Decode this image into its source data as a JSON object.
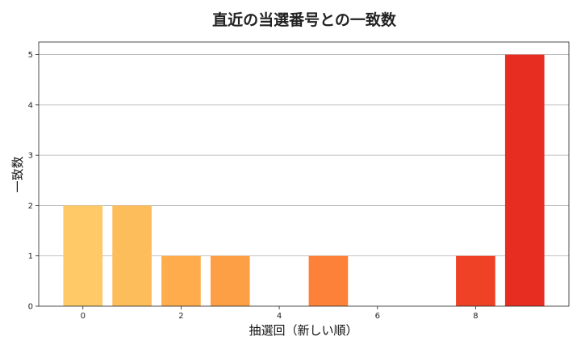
{
  "chart_data": {
    "type": "bar",
    "title": "直近の当選番号との一致数",
    "xlabel": "抽選回（新しい順）",
    "ylabel": "一致数",
    "x": [
      0,
      1,
      2,
      3,
      4,
      5,
      6,
      7,
      8,
      9
    ],
    "values": [
      2,
      2,
      1,
      1,
      0,
      1,
      0,
      0,
      1,
      5
    ],
    "colors": [
      "#fec966",
      "#febd5b",
      "#feac4c",
      "#fd9f44",
      "#fd8f3c",
      "#fd8138",
      "#f76a2d",
      "#f35a28",
      "#ef4126",
      "#e72d21"
    ],
    "xticks": [
      0,
      2,
      4,
      6,
      8
    ],
    "yticks": [
      0,
      1,
      2,
      3,
      4,
      5
    ],
    "xlim": [
      -0.9,
      9.9
    ],
    "ylim": [
      0,
      5.25
    ],
    "grid": "y"
  }
}
